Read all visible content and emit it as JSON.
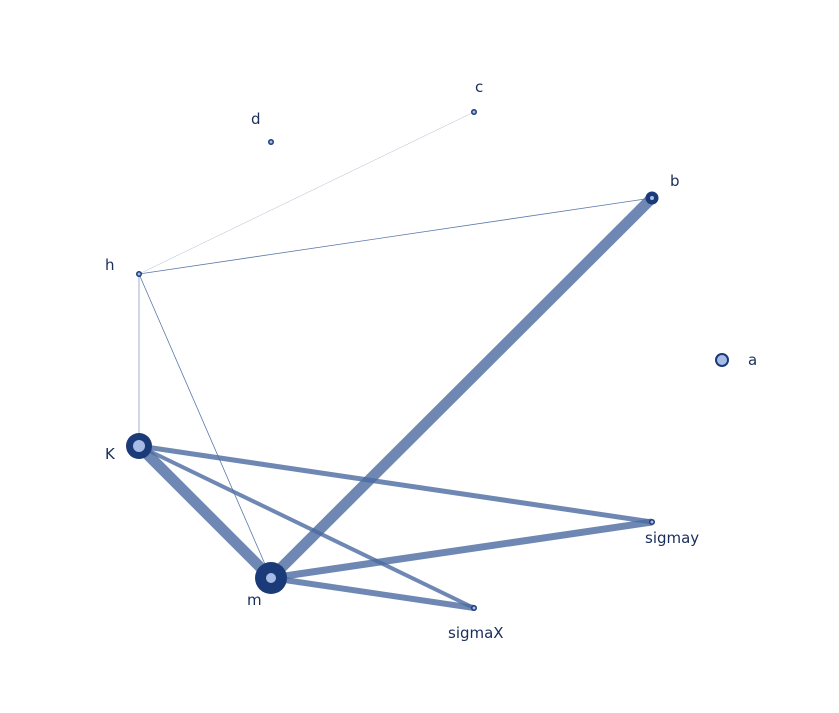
{
  "graph": {
    "colors": {
      "edge": "#4a6aa0",
      "edge_light": "#a9b6cc",
      "node_fill": "#1b3a78",
      "node_core": "#a6bce6",
      "label": "#1a2e5a"
    },
    "nodes": [
      {
        "id": "a",
        "label": "a"
      },
      {
        "id": "b",
        "label": "b"
      },
      {
        "id": "c",
        "label": "c"
      },
      {
        "id": "d",
        "label": "d"
      },
      {
        "id": "h",
        "label": "h"
      },
      {
        "id": "K",
        "label": "K"
      },
      {
        "id": "m",
        "label": "m"
      },
      {
        "id": "sigmaX",
        "label": "sigmaX"
      },
      {
        "id": "sigmay",
        "label": "sigmay"
      }
    ],
    "edges": [
      {
        "source": "h",
        "target": "c"
      },
      {
        "source": "h",
        "target": "b"
      },
      {
        "source": "h",
        "target": "K"
      },
      {
        "source": "h",
        "target": "m"
      },
      {
        "source": "K",
        "target": "m"
      },
      {
        "source": "K",
        "target": "sigmay"
      },
      {
        "source": "K",
        "target": "sigmaX"
      },
      {
        "source": "m",
        "target": "b"
      },
      {
        "source": "m",
        "target": "sigmay"
      },
      {
        "source": "m",
        "target": "sigmaX"
      }
    ]
  }
}
